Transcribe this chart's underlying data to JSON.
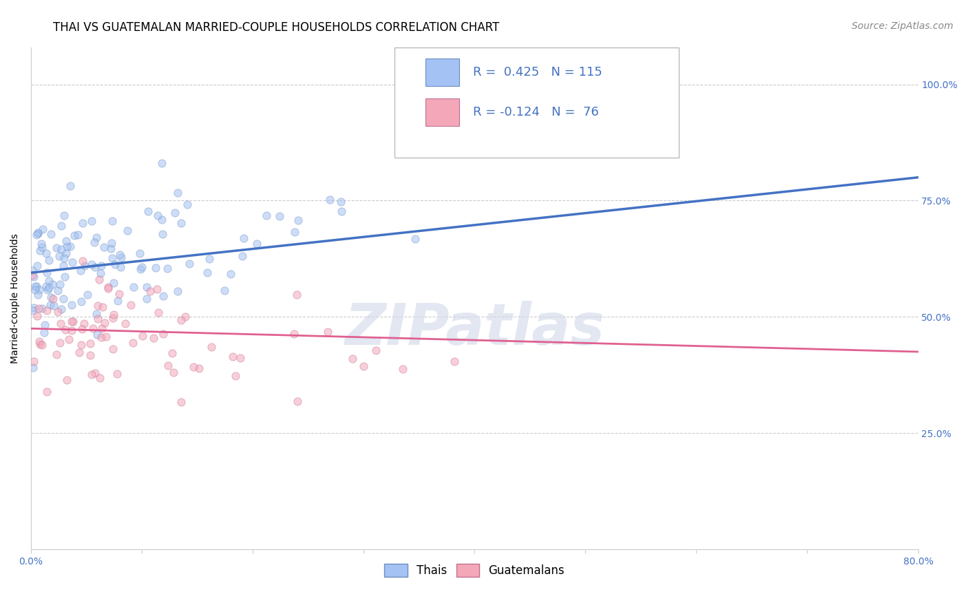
{
  "title": "THAI VS GUATEMALAN MARRIED-COUPLE HOUSEHOLDS CORRELATION CHART",
  "source": "Source: ZipAtlas.com",
  "ylabel": "Married-couple Households",
  "ytick_vals": [
    0.0,
    0.25,
    0.5,
    0.75,
    1.0
  ],
  "ytick_labels_right": [
    "",
    "25.0%",
    "50.0%",
    "75.0%",
    "100.0%"
  ],
  "xlim": [
    0.0,
    0.8
  ],
  "ylim": [
    0.0,
    1.08
  ],
  "thai_color": "#a4c2f4",
  "thai_color_edge": "#6c8ebf",
  "thai_line_color": "#4472c4",
  "guatemalan_color": "#f4a7b9",
  "guatemalan_color_edge": "#c07090",
  "guatemalan_line_color": "#e06090",
  "watermark": "ZIPatlas",
  "thai_R": 0.425,
  "thai_N": 115,
  "guat_R": -0.124,
  "guat_N": 76,
  "title_fontsize": 12,
  "label_fontsize": 10,
  "tick_fontsize": 10,
  "legend_fontsize": 13,
  "source_fontsize": 10,
  "marker_size": 65,
  "marker_alpha": 0.55,
  "background_color": "#ffffff",
  "grid_color": "#cccccc",
  "right_tick_color": "#4472c4",
  "thai_line_y0": 0.595,
  "thai_line_y1": 0.8,
  "guat_line_y0": 0.475,
  "guat_line_y1": 0.425
}
